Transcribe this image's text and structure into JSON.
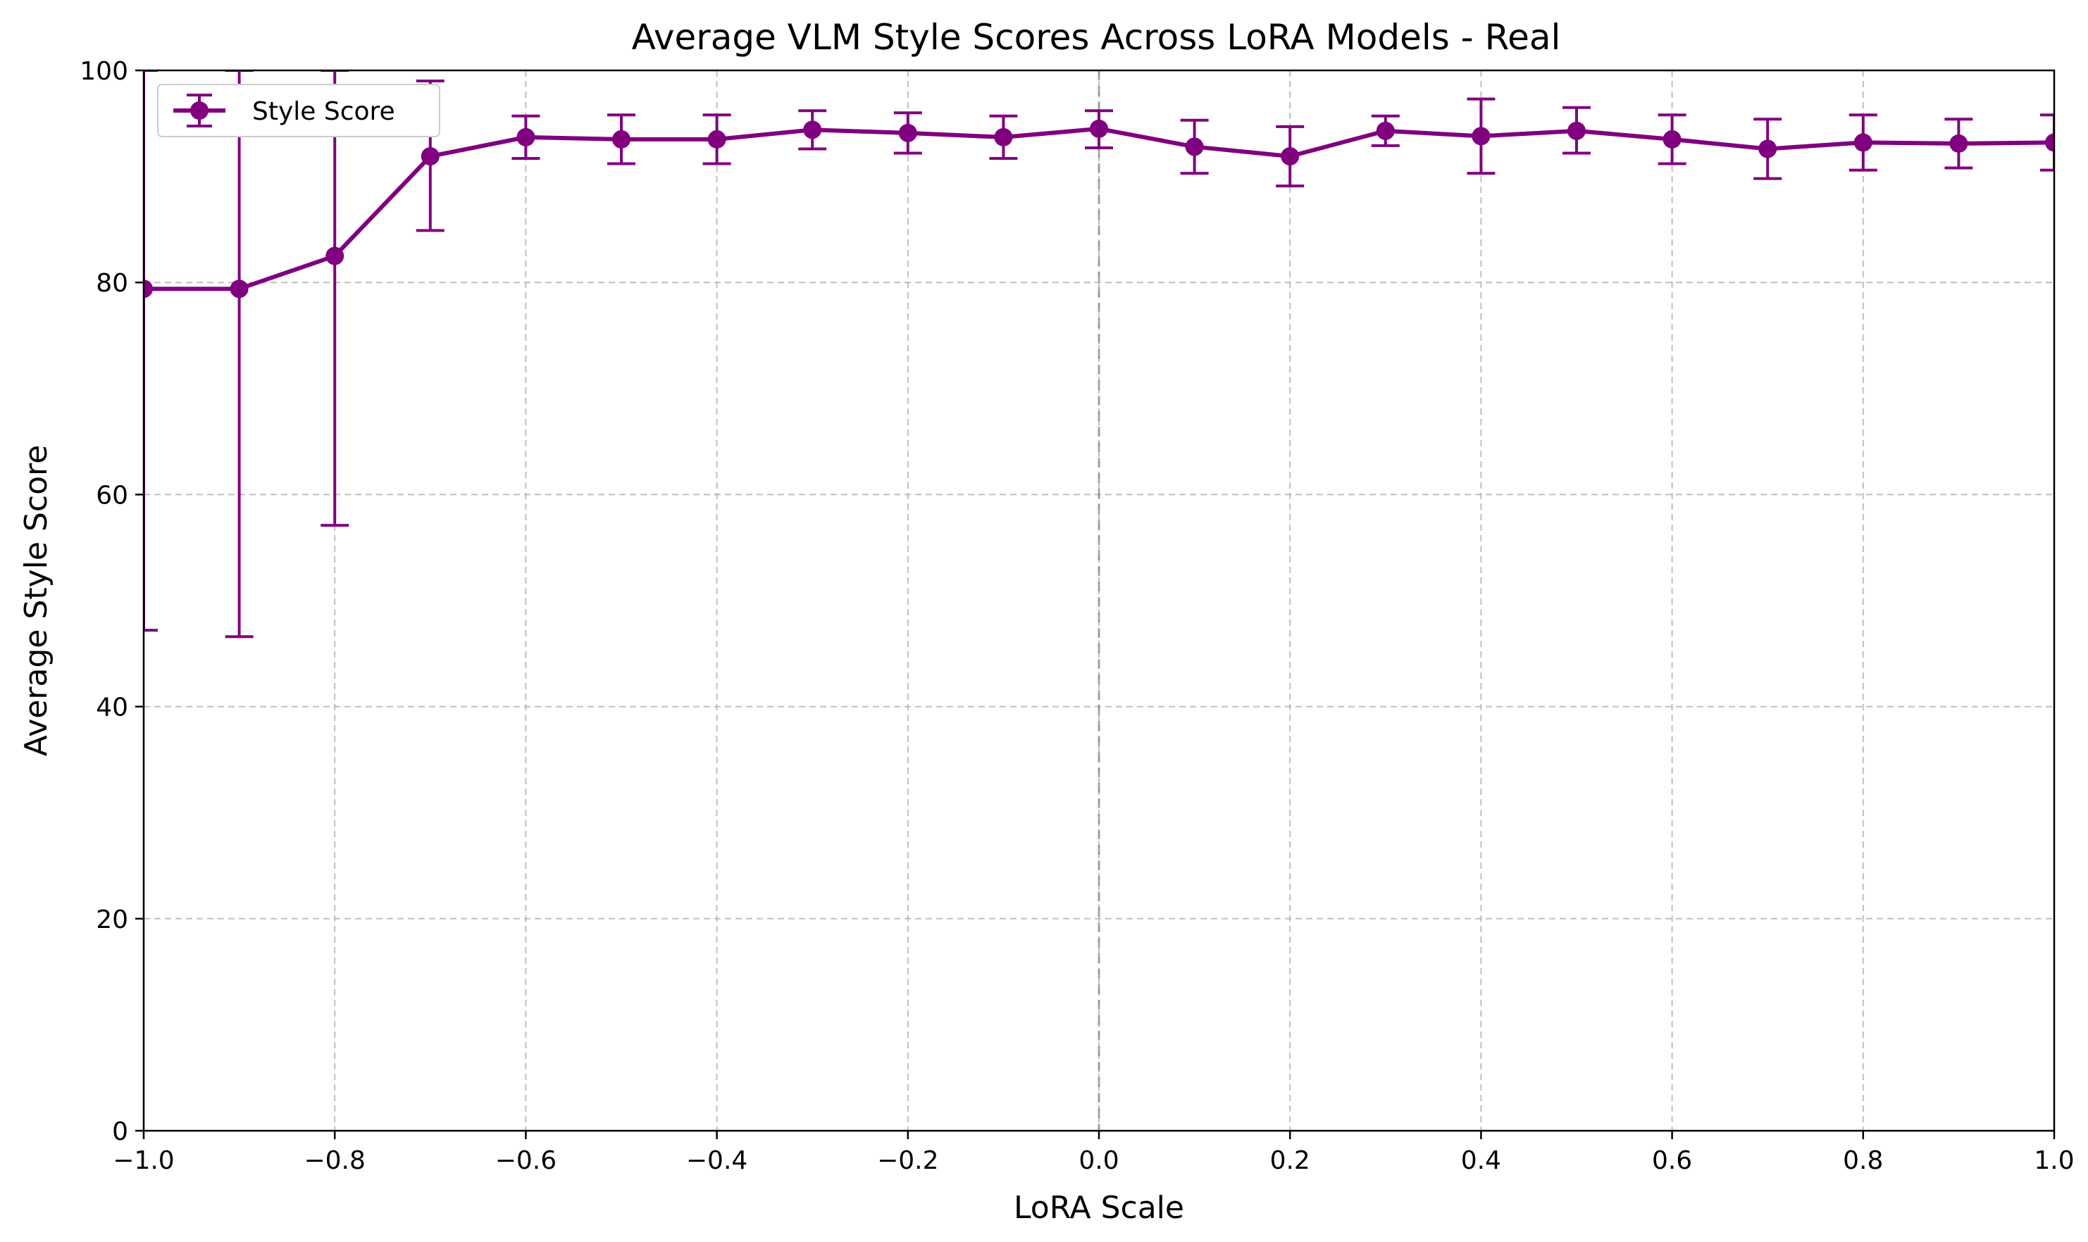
{
  "chart_data": {
    "type": "line",
    "title": "Average VLM Style Scores Across LoRA Models - Real",
    "xlabel": "LoRA Scale",
    "ylabel": "Average Style Score",
    "xlim": [
      -1.0,
      1.0
    ],
    "ylim": [
      0,
      100
    ],
    "xticks": [
      -1.0,
      -0.8,
      -0.6,
      -0.4,
      -0.2,
      0.0,
      0.2,
      0.4,
      0.6,
      0.8,
      1.0
    ],
    "xtick_labels": [
      "−1.0",
      "−0.8",
      "−0.6",
      "−0.4",
      "−0.2",
      "0.0",
      "0.2",
      "0.4",
      "0.6",
      "0.8",
      "1.0"
    ],
    "yticks": [
      0,
      20,
      40,
      60,
      80,
      100
    ],
    "ytick_labels": [
      "0",
      "20",
      "40",
      "60",
      "80",
      "100"
    ],
    "grid": true,
    "reference_line_x": 0.0,
    "legend_position": "top-left",
    "series": [
      {
        "name": "Style Score",
        "color": "#800080",
        "x": [
          -1.0,
          -0.9,
          -0.8,
          -0.7,
          -0.6,
          -0.5,
          -0.4,
          -0.3,
          -0.2,
          -0.1,
          0.0,
          0.1,
          0.2,
          0.3,
          0.4,
          0.5,
          0.6,
          0.7,
          0.8,
          0.9,
          1.0
        ],
        "y": [
          79.4,
          79.4,
          82.5,
          91.9,
          93.7,
          93.5,
          93.5,
          94.4,
          94.1,
          93.7,
          94.5,
          92.8,
          91.9,
          94.3,
          93.8,
          94.3,
          93.5,
          92.6,
          93.2,
          93.1,
          93.2
        ],
        "err_low": [
          47.2,
          46.6,
          57.1,
          84.9,
          91.7,
          91.2,
          91.2,
          92.6,
          92.2,
          91.7,
          92.7,
          90.3,
          89.1,
          92.9,
          90.3,
          92.2,
          91.2,
          89.8,
          90.6,
          90.8,
          90.6
        ],
        "err_high": [
          100,
          100,
          100,
          99.0,
          95.7,
          95.8,
          95.8,
          96.2,
          96.0,
          95.7,
          96.2,
          95.3,
          94.7,
          95.7,
          97.3,
          96.5,
          95.8,
          95.4,
          95.8,
          95.4,
          95.8
        ]
      }
    ]
  }
}
